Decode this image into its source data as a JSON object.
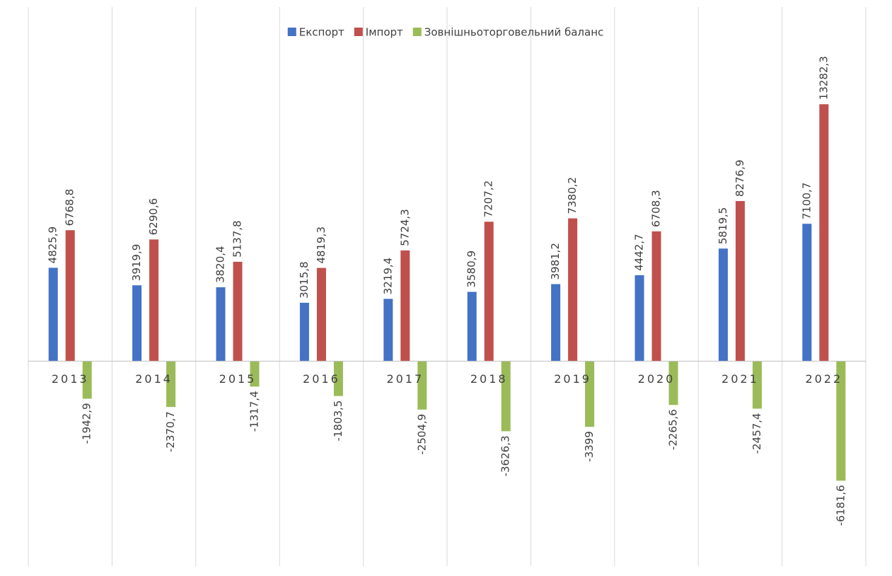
{
  "chart_data": {
    "type": "bar",
    "categories": [
      "2013",
      "2014",
      "2015",
      "2016",
      "2017",
      "2018",
      "2019",
      "2020",
      "2021",
      "2022"
    ],
    "series": [
      {
        "name": "Експорт",
        "color": "#4472c4",
        "values": [
          4825.9,
          3919.9,
          3820.4,
          3015.8,
          3219.4,
          3580.9,
          3981.2,
          4442.7,
          5819.5,
          7100.7
        ],
        "value_labels": [
          "4825,9",
          "3919,9",
          "3820,4",
          "3015,8",
          "3219,4",
          "3580,9",
          "3981,2",
          "4442,7",
          "5819,5",
          "7100,7"
        ]
      },
      {
        "name": "Імпорт",
        "color": "#c0504d",
        "values": [
          6768.8,
          6290.6,
          5137.8,
          4819.3,
          5724.3,
          7207.2,
          7380.2,
          6708.3,
          8276.9,
          13282.3
        ],
        "value_labels": [
          "6768,8",
          "6290,6",
          "5137,8",
          "4819,3",
          "5724,3",
          "7207,2",
          "7380,2",
          "6708,3",
          "8276,9",
          "13282,3"
        ]
      },
      {
        "name": "Зовнішньоторговельний баланс",
        "color": "#9bbb59",
        "values": [
          -1942.9,
          -2370.7,
          -1317.4,
          -1803.5,
          -2504.9,
          -3626.3,
          -3399,
          -2265.6,
          -2457.4,
          -6181.6
        ],
        "value_labels": [
          "-1942,9",
          "-2370,7",
          "-1317,4",
          "-1803,5",
          "-2504,9",
          "-3626,3",
          "-3399",
          "-2265,6",
          "-2457,4",
          "-6181,6"
        ]
      }
    ],
    "ylim": [
      -8000,
      16000
    ]
  }
}
